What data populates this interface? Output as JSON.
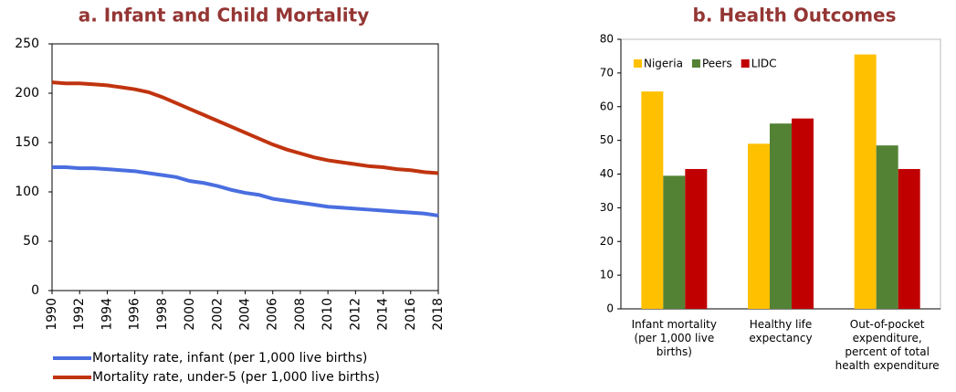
{
  "chart_data": [
    {
      "type": "line",
      "title": "a. Infant and Child Mortality",
      "x": [
        1990,
        1991,
        1992,
        1993,
        1994,
        1995,
        1996,
        1997,
        1998,
        1999,
        2000,
        2001,
        2002,
        2003,
        2004,
        2005,
        2006,
        2007,
        2008,
        2009,
        2010,
        2011,
        2012,
        2013,
        2014,
        2015,
        2016,
        2017,
        2018
      ],
      "xlim": [
        1990,
        2018
      ],
      "xticks": [
        1990,
        1992,
        1994,
        1996,
        1998,
        2000,
        2002,
        2004,
        2006,
        2008,
        2010,
        2012,
        2014,
        2016,
        2018
      ],
      "ylim": [
        0,
        250
      ],
      "yticks": [
        0,
        50,
        100,
        150,
        200,
        250
      ],
      "legend": "bottom",
      "series": [
        {
          "name": "Mortality rate, infant (per 1,000 live births)",
          "color": "#4a6ee0",
          "values": [
            125,
            125,
            124,
            124,
            123,
            122,
            121,
            119,
            117,
            115,
            111,
            109,
            106,
            102,
            99,
            97,
            93,
            91,
            89,
            87,
            85,
            84,
            83,
            82,
            81,
            80,
            79,
            78,
            76
          ]
        },
        {
          "name": "Mortality rate, under-5 (per 1,000 live births)",
          "color": "#c0340f",
          "values": [
            211,
            210,
            210,
            209,
            208,
            206,
            204,
            201,
            196,
            190,
            184,
            178,
            172,
            166,
            160,
            154,
            148,
            143,
            139,
            135,
            132,
            130,
            128,
            126,
            125,
            123,
            122,
            120,
            119
          ]
        }
      ]
    },
    {
      "type": "bar",
      "title": "b. Health Outcomes",
      "categories": [
        "Infant mortality (per 1,000 live births)",
        "Healthy life expectancy",
        "Out-of-pocket expenditure, percent of total health expenditure"
      ],
      "ylim": [
        0,
        80
      ],
      "yticks": [
        0,
        10,
        20,
        30,
        40,
        50,
        60,
        70,
        80
      ],
      "legend": "top-left",
      "series": [
        {
          "name": "Nigeria",
          "color": "#ffc000",
          "values": [
            64.5,
            49,
            75.5
          ]
        },
        {
          "name": "Peers",
          "color": "#548235",
          "values": [
            39.5,
            55,
            48.5
          ]
        },
        {
          "name": "LIDC",
          "color": "#c00000",
          "values": [
            41.5,
            56.5,
            41.5
          ]
        }
      ]
    }
  ]
}
